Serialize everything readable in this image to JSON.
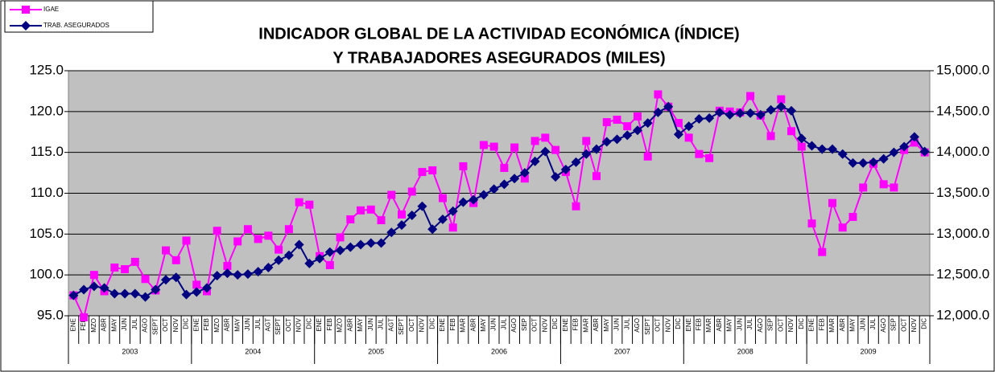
{
  "chart_data": {
    "type": "line",
    "title": "INDICADOR GLOBAL DE LA ACTIVIDAD ECONÓMICA (ÍNDICE)",
    "subtitle": "Y TRABAJADORES ASEGURADOS (MILES)",
    "categories": [
      "ENE",
      "FEB",
      "MZO",
      "ABR",
      "MAY",
      "JUN",
      "JUL",
      "AGO",
      "SEPT",
      "OCT",
      "NOV",
      "DIC",
      "ENE",
      "FEB",
      "MZO",
      "ABR",
      "MAY",
      "JUN",
      "JUL",
      "AGT",
      "SEPT",
      "OCT",
      "NOV",
      "DIC",
      "ENE",
      "FEB",
      "MZO",
      "ABR",
      "MAY",
      "JUN",
      "JUL",
      "AGT",
      "SEPT",
      "OCT",
      "NOV",
      "DIC",
      "ENE",
      "FEB",
      "MAR",
      "ABR",
      "MAY",
      "JUN",
      "JUL",
      "AGO",
      "SEP",
      "OCT",
      "NOV",
      "DIC",
      "ENE",
      "FEB",
      "MAR",
      "ABR",
      "MAY",
      "JUN",
      "JUL",
      "AGO",
      "SEPT",
      "OCT",
      "NOV",
      "DIC",
      "ENE",
      "FEB",
      "MAR",
      "ABR",
      "MAY",
      "JUN",
      "JUL",
      "AGO",
      "SEP",
      "OCT",
      "NOV",
      "DIC",
      "ENE",
      "FEB",
      "MAR",
      "ABR",
      "MAY",
      "JUN",
      "JUL",
      "AGO",
      "SEP",
      "OCT",
      "NOV",
      "DIC"
    ],
    "category_groups": [
      {
        "label": "2003",
        "size": 12
      },
      {
        "label": "2004",
        "size": 12
      },
      {
        "label": "2005",
        "size": 12
      },
      {
        "label": "2006",
        "size": 12
      },
      {
        "label": "2007",
        "size": 12
      },
      {
        "label": "2008",
        "size": 12
      },
      {
        "label": "2009",
        "size": 12
      }
    ],
    "series": [
      {
        "name": "IGAE",
        "color": "#ff00ff",
        "marker": "square",
        "values": [
          97.5,
          94.8,
          100.0,
          98.0,
          100.9,
          100.7,
          101.6,
          99.5,
          98.1,
          103.0,
          101.8,
          104.2,
          98.8,
          98.0,
          105.4,
          101.1,
          104.1,
          105.6,
          104.4,
          104.8,
          103.1,
          105.6,
          108.9,
          108.6,
          102.3,
          101.2,
          104.6,
          106.8,
          107.9,
          108.0,
          106.7,
          109.8,
          107.4,
          110.2,
          112.6,
          112.8,
          109.4,
          105.8,
          113.3,
          108.8,
          115.9,
          115.7,
          113.1,
          115.6,
          111.8,
          116.4,
          116.8,
          115.3,
          112.6,
          108.4,
          116.4,
          112.1,
          118.7,
          119.0,
          118.2,
          119.4,
          114.5,
          122.1,
          120.6,
          118.6,
          116.8,
          114.8,
          114.3,
          120.1,
          120.0,
          119.9,
          121.9,
          119.5,
          117.0,
          121.5,
          117.6,
          115.7,
          106.3,
          102.8,
          108.8,
          105.8,
          107.1,
          110.7,
          113.6,
          111.1,
          110.7,
          115.3,
          116.2,
          115.0
        ]
      },
      {
        "name": "TRAB. ASEGURADOS",
        "color": "#000080",
        "marker": "diamond",
        "axis": "y2",
        "values": [
          12250,
          12320,
          12360,
          12340,
          12270,
          12270,
          12270,
          12230,
          12320,
          12440,
          12470,
          12260,
          12290,
          12340,
          12490,
          12520,
          12500,
          12510,
          12540,
          12590,
          12680,
          12740,
          12870,
          12640,
          12700,
          12780,
          12800,
          12840,
          12870,
          12890,
          12890,
          13020,
          13110,
          13230,
          13340,
          13060,
          13180,
          13280,
          13390,
          13420,
          13480,
          13550,
          13610,
          13680,
          13750,
          13890,
          14010,
          13700,
          13790,
          13880,
          13980,
          14040,
          14130,
          14160,
          14210,
          14270,
          14360,
          14490,
          14560,
          14220,
          14320,
          14410,
          14420,
          14490,
          14460,
          14480,
          14480,
          14460,
          14520,
          14560,
          14510,
          14170,
          14080,
          14040,
          14040,
          13980,
          13870,
          13870,
          13880,
          13920,
          14000,
          14070,
          14190,
          14010
        ]
      }
    ],
    "ylim": [
      95,
      125
    ],
    "yticks": [
      {
        "value": 95,
        "label": "95.0"
      },
      {
        "value": 100,
        "label": "100.0"
      },
      {
        "value": 105,
        "label": "105.0"
      },
      {
        "value": 110,
        "label": "110.0"
      },
      {
        "value": 115,
        "label": "115.0"
      },
      {
        "value": 120,
        "label": "120.0"
      },
      {
        "value": 125,
        "label": "125.0"
      }
    ],
    "y2lim": [
      12000,
      15000
    ],
    "y2ticks": [
      {
        "value": 12000,
        "label": "12,000.0"
      },
      {
        "value": 12500,
        "label": "12,500.0"
      },
      {
        "value": 13000,
        "label": "13,000.0"
      },
      {
        "value": 13500,
        "label": "13,500.0"
      },
      {
        "value": 14000,
        "label": "14,000.0"
      },
      {
        "value": 14500,
        "label": "14,500.0"
      },
      {
        "value": 15000,
        "label": "15,000.0"
      }
    ],
    "grid": true,
    "legend": "top-left",
    "plot_background": "#c0c0c0"
  }
}
